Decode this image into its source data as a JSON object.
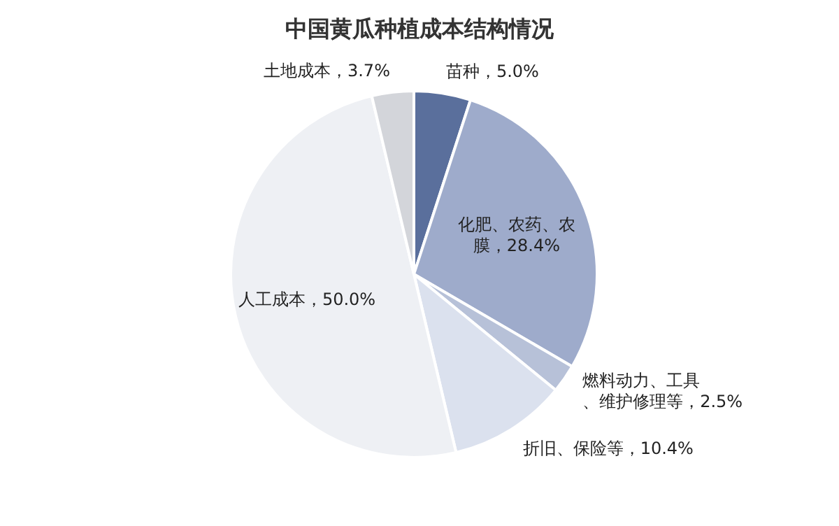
{
  "chart_data": {
    "type": "pie",
    "title": "中国黄瓜种植成本结构情况",
    "categories": [
      "苗种",
      "化肥、农药、农膜",
      "燃料动力、工具、维护修理等",
      "折旧、保险等",
      "人工成本",
      "土地成本"
    ],
    "values": [
      5.0,
      28.4,
      2.5,
      10.4,
      50.0,
      3.7
    ],
    "value_labels": [
      "5.0%",
      "28.4%",
      "2.5%",
      "10.4%",
      "50.0%",
      "3.7%"
    ],
    "colors": [
      "#5a6f9c",
      "#9eabcb",
      "#b7c1d8",
      "#dbe1ee",
      "#eef0f4",
      "#d3d5da"
    ]
  }
}
